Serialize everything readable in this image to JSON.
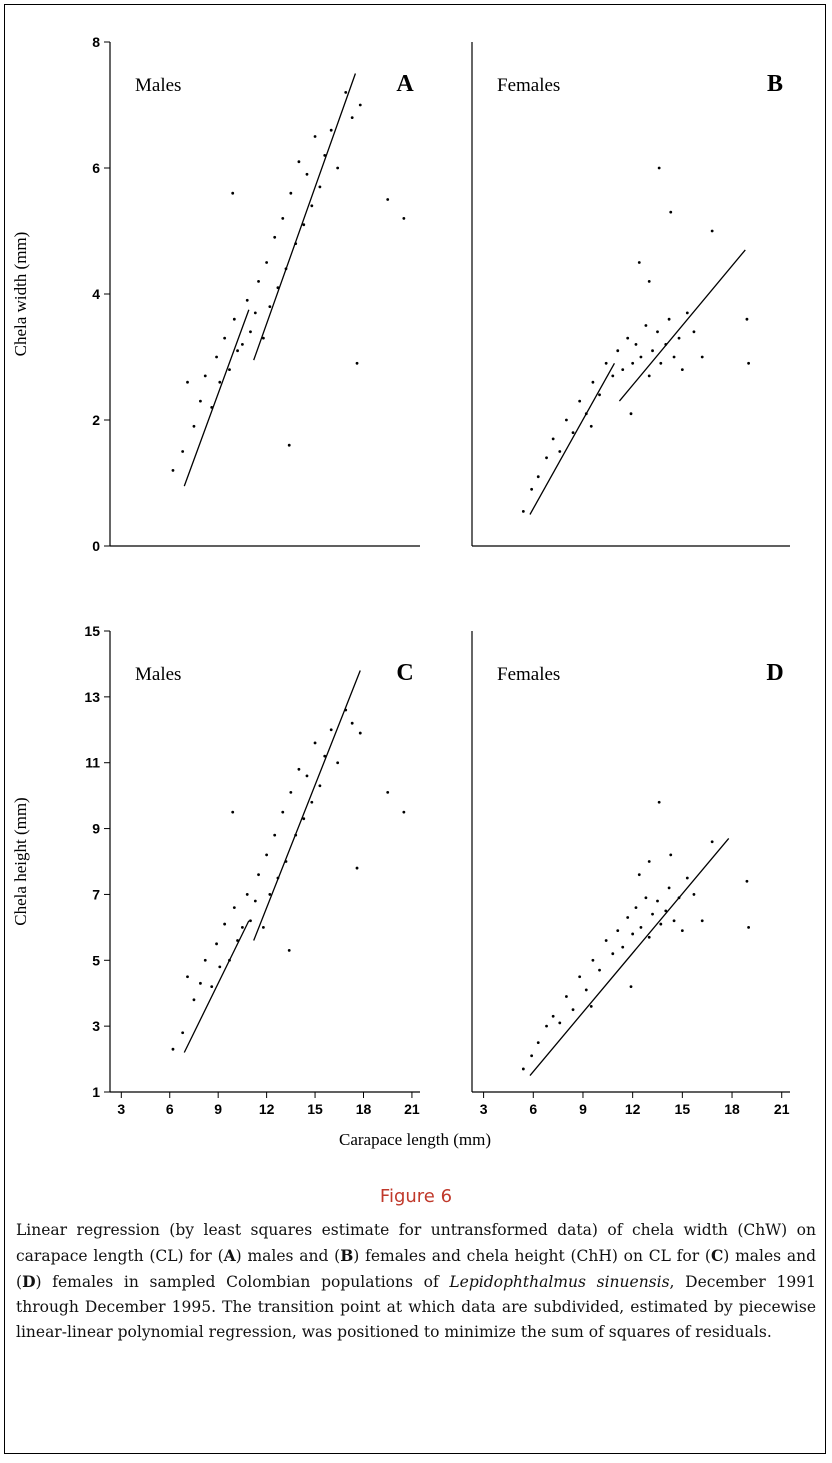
{
  "chart_data": [
    {
      "type": "scatter",
      "panel_label": "A",
      "group_label": "Males",
      "ylabel": "Chela width (mm)",
      "color": "#000000",
      "xlim": [
        2.3,
        21.5
      ],
      "ylim": [
        0,
        8
      ],
      "yticks": [
        0,
        2,
        4,
        6,
        8
      ],
      "points": {
        "x": [
          6.2,
          6.8,
          7.1,
          7.5,
          7.9,
          8.2,
          8.6,
          8.9,
          9.1,
          9.4,
          9.7,
          10.0,
          10.2,
          10.5,
          10.8,
          11.0,
          11.3,
          11.5,
          11.8,
          12.0,
          12.2,
          12.5,
          12.7,
          13.0,
          13.2,
          13.5,
          13.8,
          14.0,
          14.3,
          14.5,
          14.8,
          15.0,
          15.3,
          15.6,
          16.0,
          16.4,
          16.9,
          17.3,
          17.8,
          19.5,
          20.5,
          9.9,
          13.4,
          17.6
        ],
        "y": [
          1.2,
          1.5,
          2.6,
          1.9,
          2.3,
          2.7,
          2.2,
          3.0,
          2.6,
          3.3,
          2.8,
          3.6,
          3.1,
          3.2,
          3.9,
          3.4,
          3.7,
          4.2,
          3.3,
          4.5,
          3.8,
          4.9,
          4.1,
          5.2,
          4.4,
          5.6,
          4.8,
          6.1,
          5.1,
          5.9,
          5.4,
          6.5,
          5.7,
          6.2,
          6.6,
          6.0,
          7.2,
          6.8,
          7.0,
          5.5,
          5.2,
          5.6,
          1.6,
          2.9
        ]
      },
      "fit_lines": [
        {
          "x": [
            6.9,
            10.9
          ],
          "y": [
            0.95,
            3.75
          ]
        },
        {
          "x": [
            11.2,
            17.5
          ],
          "y": [
            2.95,
            7.5
          ]
        }
      ]
    },
    {
      "type": "scatter",
      "panel_label": "B",
      "group_label": "Females",
      "color": "#000000",
      "xlim": [
        2.3,
        21.5
      ],
      "ylim": [
        0,
        8
      ],
      "points": {
        "x": [
          5.4,
          5.9,
          6.3,
          6.8,
          7.2,
          7.6,
          8.0,
          8.4,
          8.8,
          9.2,
          9.6,
          10.0,
          10.4,
          10.8,
          11.1,
          11.4,
          11.7,
          12.0,
          12.2,
          12.5,
          12.8,
          13.0,
          13.2,
          13.5,
          13.7,
          14.0,
          14.2,
          14.5,
          14.8,
          15.0,
          15.3,
          15.7,
          16.2,
          16.8,
          13.6,
          14.3,
          12.4,
          18.9,
          19.0,
          9.5,
          11.9,
          13.0
        ],
        "y": [
          0.55,
          0.9,
          1.1,
          1.4,
          1.7,
          1.5,
          2.0,
          1.8,
          2.3,
          2.1,
          2.6,
          2.4,
          2.9,
          2.7,
          3.1,
          2.8,
          3.3,
          2.9,
          3.2,
          3.0,
          3.5,
          2.7,
          3.1,
          3.4,
          2.9,
          3.2,
          3.6,
          3.0,
          3.3,
          2.8,
          3.7,
          3.4,
          3.0,
          5.0,
          6.0,
          5.3,
          4.5,
          3.6,
          2.9,
          1.9,
          2.1,
          4.2
        ]
      },
      "fit_lines": [
        {
          "x": [
            5.8,
            10.9
          ],
          "y": [
            0.5,
            2.9
          ]
        },
        {
          "x": [
            11.2,
            18.8
          ],
          "y": [
            2.3,
            4.7
          ]
        }
      ]
    },
    {
      "type": "scatter",
      "panel_label": "C",
      "group_label": "Males",
      "ylabel": "Chela height (mm)",
      "color": "#000000",
      "xlim": [
        2.3,
        21.5
      ],
      "ylim": [
        1,
        15
      ],
      "yticks": [
        1,
        3,
        5,
        7,
        9,
        11,
        13,
        15
      ],
      "xticks": [
        3,
        6,
        9,
        12,
        15,
        18,
        21
      ],
      "points": {
        "x": [
          6.2,
          6.8,
          7.1,
          7.5,
          7.9,
          8.2,
          8.6,
          8.9,
          9.1,
          9.4,
          9.7,
          10.0,
          10.2,
          10.5,
          10.8,
          11.0,
          11.3,
          11.5,
          11.8,
          12.0,
          12.2,
          12.5,
          12.7,
          13.0,
          13.2,
          13.5,
          13.8,
          14.0,
          14.3,
          14.5,
          14.8,
          15.0,
          15.3,
          15.6,
          16.0,
          16.4,
          16.9,
          17.3,
          17.8,
          19.5,
          20.5,
          9.9,
          13.4,
          17.6
        ],
        "y": [
          2.3,
          2.8,
          4.5,
          3.8,
          4.3,
          5.0,
          4.2,
          5.5,
          4.8,
          6.1,
          5.0,
          6.6,
          5.6,
          6.0,
          7.0,
          6.2,
          6.8,
          7.6,
          6.0,
          8.2,
          7.0,
          8.8,
          7.5,
          9.5,
          8.0,
          10.1,
          8.8,
          10.8,
          9.3,
          10.6,
          9.8,
          11.6,
          10.3,
          11.2,
          12.0,
          11.0,
          12.6,
          12.2,
          11.9,
          10.1,
          9.5,
          9.5,
          5.3,
          7.8
        ]
      },
      "fit_lines": [
        {
          "x": [
            6.9,
            10.9
          ],
          "y": [
            2.2,
            6.2
          ]
        },
        {
          "x": [
            11.2,
            17.8
          ],
          "y": [
            5.6,
            13.8
          ]
        }
      ]
    },
    {
      "type": "scatter",
      "panel_label": "D",
      "group_label": "Females",
      "color": "#000000",
      "xlim": [
        2.3,
        21.5
      ],
      "ylim": [
        1,
        15
      ],
      "xticks": [
        3,
        6,
        9,
        12,
        15,
        18,
        21
      ],
      "points": {
        "x": [
          5.4,
          5.9,
          6.3,
          6.8,
          7.2,
          7.6,
          8.0,
          8.4,
          8.8,
          9.2,
          9.6,
          10.0,
          10.4,
          10.8,
          11.1,
          11.4,
          11.7,
          12.0,
          12.2,
          12.5,
          12.8,
          13.0,
          13.2,
          13.5,
          13.7,
          14.0,
          14.2,
          14.5,
          14.8,
          15.0,
          15.3,
          15.7,
          16.2,
          16.8,
          13.6,
          14.3,
          12.4,
          18.9,
          19.0,
          9.5,
          11.9,
          13.0
        ],
        "y": [
          1.7,
          2.1,
          2.5,
          3.0,
          3.3,
          3.1,
          3.9,
          3.5,
          4.5,
          4.1,
          5.0,
          4.7,
          5.6,
          5.2,
          5.9,
          5.4,
          6.3,
          5.8,
          6.6,
          6.0,
          6.9,
          5.7,
          6.4,
          6.8,
          6.1,
          6.5,
          7.2,
          6.2,
          6.9,
          5.9,
          7.5,
          7.0,
          6.2,
          8.6,
          9.8,
          8.2,
          7.6,
          7.4,
          6.0,
          3.6,
          4.2,
          8.0
        ]
      },
      "fit_lines": [
        {
          "x": [
            5.8,
            17.8
          ],
          "y": [
            1.5,
            8.7
          ]
        }
      ]
    }
  ],
  "x_label": "Carapace length (mm)",
  "figure_label": "Figure 6",
  "caption": [
    {
      "text": "Linear regression (by least squares estimate for untransformed data) of chela width (ChW) on carapace length (CL) for ("
    },
    {
      "text": "A",
      "style": "bold"
    },
    {
      "text": ") males and ("
    },
    {
      "text": "B",
      "style": "bold"
    },
    {
      "text": ") females and chela height (ChH) on CL for ("
    },
    {
      "text": "C",
      "style": "bold"
    },
    {
      "text": ") males and ("
    },
    {
      "text": "D",
      "style": "bold"
    },
    {
      "text": ") females in sampled Colombian populations of "
    },
    {
      "text": "Lepidophthalmus sinuensis",
      "style": "italic"
    },
    {
      "text": ", December 1991 through December 1995. The transition point at which data are subdivided, estimated by piecewise linear-linear polynomial regression, was positioned to minimize the sum of squares of residuals."
    }
  ]
}
